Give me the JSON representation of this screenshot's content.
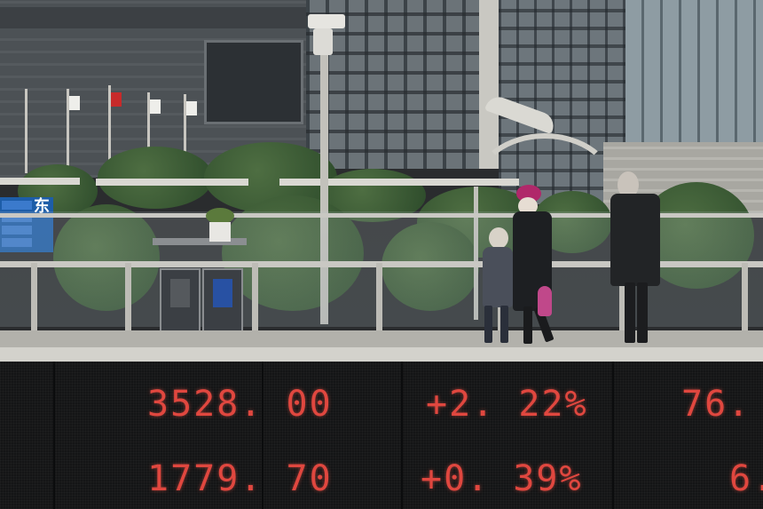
{
  "ticker": {
    "row1": {
      "value": "3528. 00",
      "change": "+2. 22%",
      "partial": "76."
    },
    "row2": {
      "value": "1779. 70",
      "change": "+0. 39%",
      "partial": "6."
    },
    "color": "#e0473f"
  },
  "signage": {
    "sign_text": "东"
  },
  "colors": {
    "led_background": "#141516",
    "sign_blue": "#1d5da8",
    "hat_magenta": "#b0286a"
  }
}
